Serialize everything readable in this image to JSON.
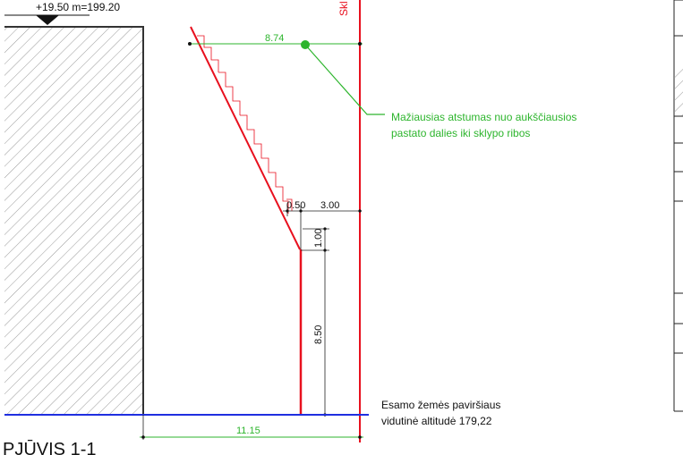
{
  "elevation_marker": "+19.50 m=199.20",
  "property_line_label": "Skl",
  "dimensions": {
    "top_distance": "8.74",
    "step_offset": "0.50",
    "step_width": "3.00",
    "step_height": "1.00",
    "wall_height": "8.50",
    "base_width": "11.15"
  },
  "callout": {
    "line1": "Mažiausias atstumas nuo aukščiausios",
    "line2": "pastato dalies iki sklypo ribos"
  },
  "ground_label": {
    "line1": "Esamo žemės paviršiaus",
    "line2": "vidutinė altitudė 179,22"
  },
  "section_title": "PJŪVIS 1-1",
  "colors": {
    "limit_line": "#e8101e",
    "dimension": "#2db52d",
    "ground": "#1f2fe0",
    "building": "#333333",
    "hatch": "#9a9a9a"
  }
}
